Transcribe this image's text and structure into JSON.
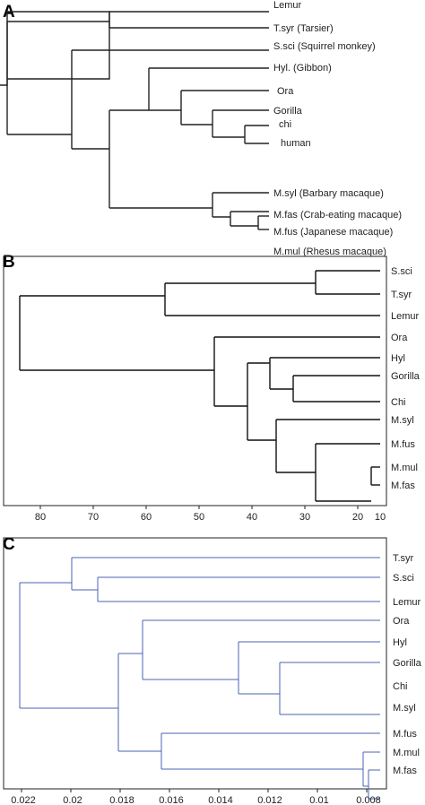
{
  "panels": [
    {
      "label": "A",
      "leaves": [
        "Lemur",
        "T.syr (Tarsier)",
        "S.sci (Squirrel monkey)",
        "Hyl. (Gibbon)",
        "Ora",
        "Gorilla",
        "chi",
        "human",
        "M.syl (Barbary macaque)",
        "M.fas (Crab-eating macaque)",
        "M.fus (Japanese macaque)",
        "M.mul (Rhesus macaque)"
      ]
    },
    {
      "label": "B",
      "leaves": [
        "S.sci",
        "T.syr",
        "Lemur",
        "Ora",
        "Hyl",
        "Gorilla",
        "Chi",
        "M.syl",
        "M.fus",
        "M.mul",
        "M.fas"
      ],
      "axis_ticks": [
        "80",
        "70",
        "60",
        "50",
        "40",
        "30",
        "20",
        "10"
      ]
    },
    {
      "label": "C",
      "leaves": [
        "T.syr",
        "S.sci",
        "Lemur",
        "Ora",
        "Hyl",
        "Gorilla",
        "Chi",
        "M.syl",
        "M.fus",
        "M.mul",
        "M.fas"
      ],
      "axis_ticks": [
        "0.022",
        "0.02",
        "0.018",
        "0.016",
        "0.014",
        "0.012",
        "0.01",
        "0.008"
      ]
    }
  ]
}
